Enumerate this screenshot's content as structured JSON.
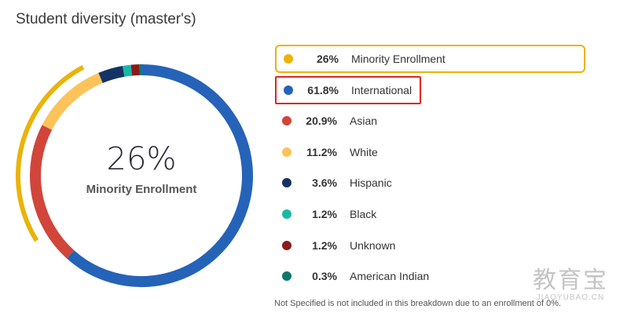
{
  "title": "Student diversity (master's)",
  "center": {
    "value": "26%",
    "label": "Minority Enrollment"
  },
  "highlight_arc": {
    "value": 26,
    "color": "#eab308"
  },
  "legend": [
    {
      "pct": "26%",
      "label": "Minority Enrollment",
      "color": "#eab308",
      "selected": true,
      "highlight": false
    },
    {
      "pct": "61.8%",
      "label": "International",
      "color": "#2563b8",
      "selected": false,
      "highlight": true
    },
    {
      "pct": "20.9%",
      "label": "Asian",
      "color": "#d1453b",
      "selected": false,
      "highlight": false
    },
    {
      "pct": "11.2%",
      "label": "White",
      "color": "#fcc35a",
      "selected": false,
      "highlight": false
    },
    {
      "pct": "3.6%",
      "label": "Hispanic",
      "color": "#133366",
      "selected": false,
      "highlight": false
    },
    {
      "pct": "1.2%",
      "label": "Black",
      "color": "#19b8a6",
      "selected": false,
      "highlight": false
    },
    {
      "pct": "1.2%",
      "label": "Unknown",
      "color": "#8b1a1a",
      "selected": false,
      "highlight": false
    },
    {
      "pct": "0.3%",
      "label": "American Indian",
      "color": "#0f766e",
      "selected": false,
      "highlight": false
    }
  ],
  "note": "Not Specified is not included in this breakdown due to an enrollment of 0%.",
  "watermark": {
    "main": "教育宝",
    "sub": "JIAOYUBAO.CN"
  },
  "chart_data": {
    "type": "pie",
    "title": "Student diversity (master's)",
    "categories": [
      "International",
      "Asian",
      "White",
      "Hispanic",
      "Black",
      "Unknown",
      "American Indian"
    ],
    "values": [
      61.8,
      20.9,
      11.2,
      3.6,
      1.2,
      1.2,
      0.3
    ],
    "colors": [
      "#2563b8",
      "#d1453b",
      "#fcc35a",
      "#133366",
      "#19b8a6",
      "#8b1a1a",
      "#0f766e"
    ],
    "unit": "%",
    "legend_placement": "right"
  }
}
